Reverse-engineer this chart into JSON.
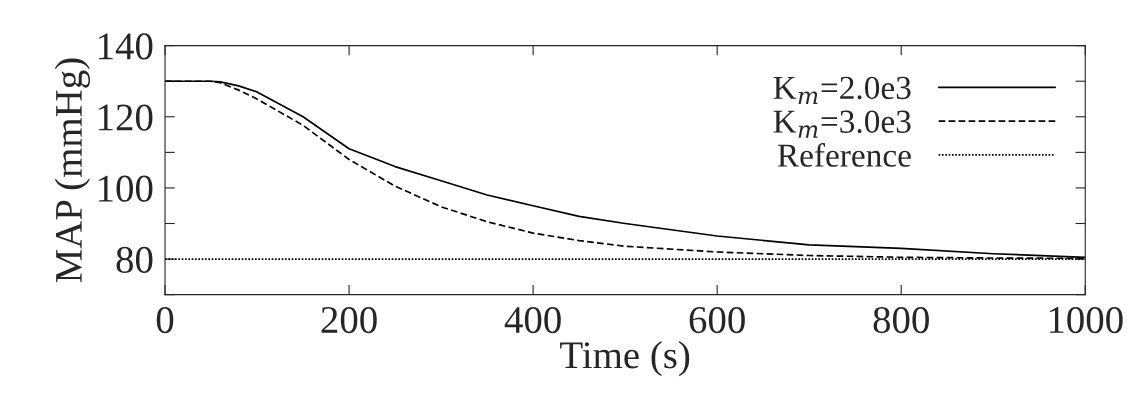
{
  "chart_data": {
    "type": "line",
    "xlabel": "Time (s)",
    "ylabel": "MAP (mmHg)",
    "xlim": [
      0,
      1000
    ],
    "xticks": [
      0,
      200,
      400,
      600,
      800,
      1000
    ],
    "ylim": [
      70,
      140
    ],
    "yticks": [
      {
        "value": 70,
        "label": null
      },
      80,
      {
        "value": 90,
        "label": null
      },
      100,
      {
        "value": 110,
        "label": null
      },
      120,
      {
        "value": 130,
        "label": null
      },
      140
    ],
    "legend": "top right",
    "grid": false,
    "series": [
      {
        "name": "K$_{m}$=2.0e3",
        "color": "#000000",
        "line_style": "solid",
        "x": [
          0,
          50,
          60,
          80,
          100,
          150,
          200,
          250,
          300,
          350,
          400,
          450,
          500,
          600,
          700,
          800,
          900,
          1000
        ],
        "values": [
          130,
          130,
          129.8,
          128.7,
          127,
          120,
          111,
          106,
          102,
          98,
          95,
          92,
          90,
          86.5,
          84,
          83,
          81.5,
          80.5
        ]
      },
      {
        "name": "K$_{m}$=3.0e3",
        "color": "#000000",
        "line_style": "dashed",
        "x": [
          0,
          50,
          60,
          80,
          100,
          150,
          200,
          250,
          300,
          350,
          400,
          450,
          500,
          600,
          700,
          800,
          900,
          1000
        ],
        "values": [
          130,
          130,
          129.6,
          127.5,
          125,
          117.6,
          108,
          100.5,
          94.7,
          90.5,
          87.3,
          85.2,
          83.6,
          82,
          81,
          80.5,
          80.3,
          80.2
        ]
      },
      {
        "name": "Reference",
        "color": "#000000",
        "line_style": "dotted",
        "x": [
          0,
          1000
        ],
        "values": [
          80,
          80
        ]
      }
    ]
  }
}
